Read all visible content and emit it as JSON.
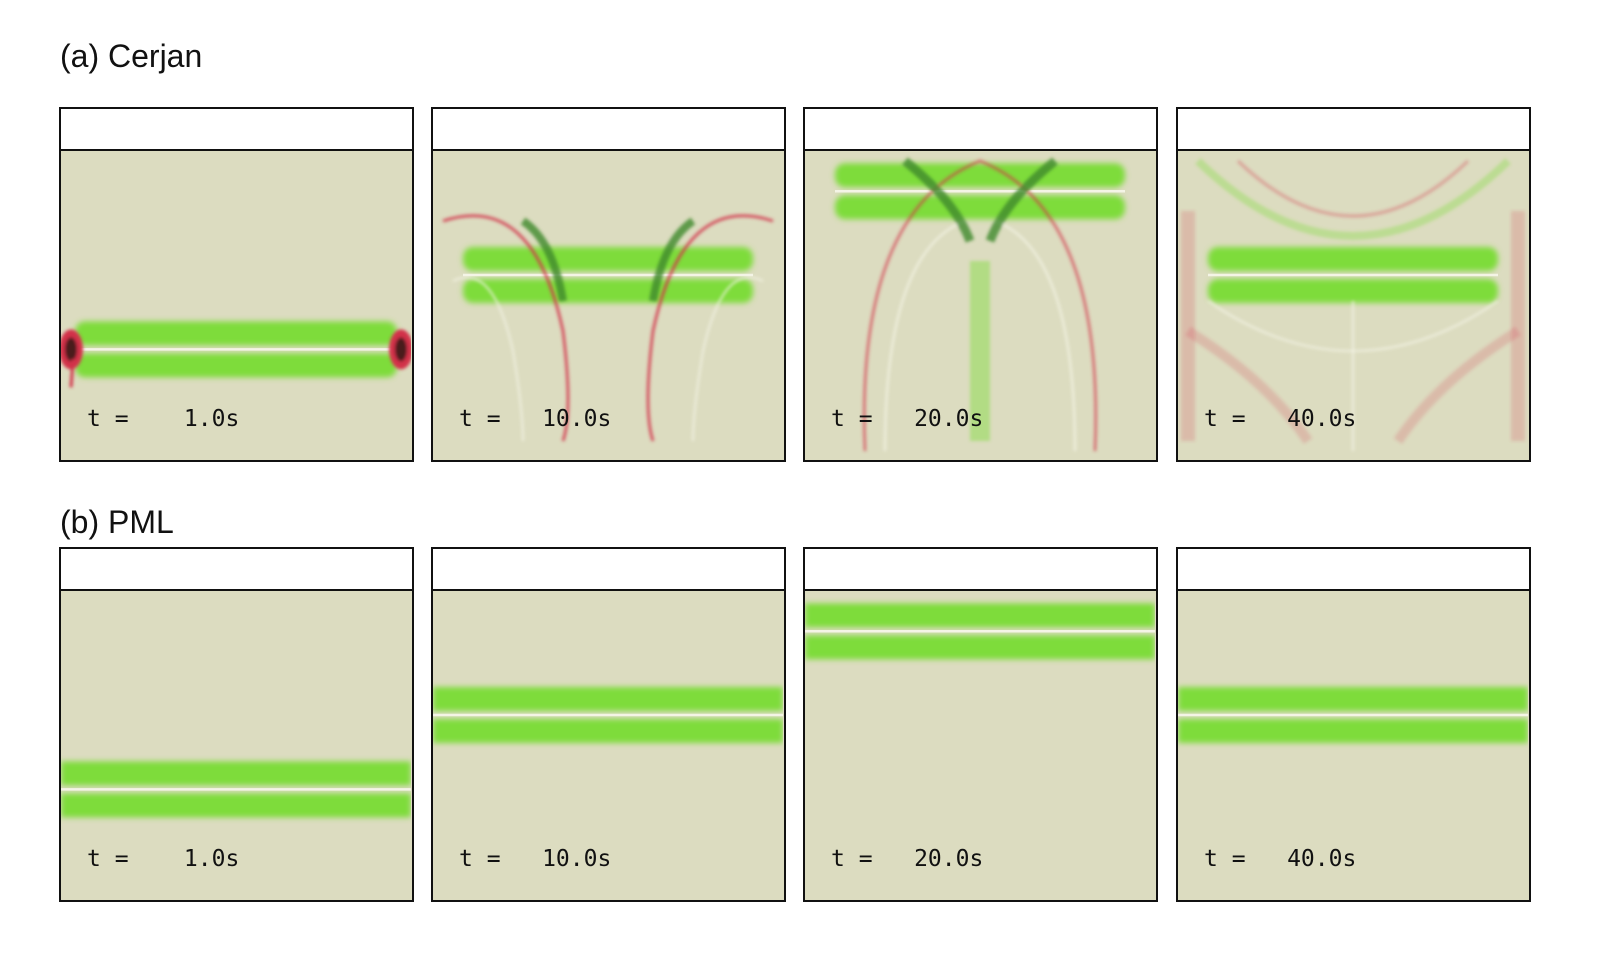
{
  "rows": [
    {
      "title": "(a) Cerjan",
      "panels": [
        {
          "time_label": "t =    1.0s",
          "band_center": 0.64,
          "artifacts": "edge"
        },
        {
          "time_label": "t =   10.0s",
          "band_center": 0.4,
          "artifacts": "arcs"
        },
        {
          "time_label": "t =   20.0s",
          "band_center": 0.13,
          "artifacts": "big-arcs"
        },
        {
          "time_label": "t =   40.0s",
          "band_center": 0.4,
          "artifacts": "chaotic"
        }
      ]
    },
    {
      "title": "(b) PML",
      "panels": [
        {
          "time_label": "t =    1.0s",
          "band_center": 0.64,
          "artifacts": "none"
        },
        {
          "time_label": "t =   10.0s",
          "band_center": 0.4,
          "artifacts": "none"
        },
        {
          "time_label": "t =   20.0s",
          "band_center": 0.13,
          "artifacts": "none"
        },
        {
          "time_label": "t =   40.0s",
          "band_center": 0.4,
          "artifacts": "none"
        }
      ]
    }
  ],
  "colors": {
    "background": "#dcdcc0",
    "wave_green": "#7edc3a",
    "dark_green": "#3f8a2a",
    "artifact_red": "#d2334a",
    "crest": "#f4f4e6"
  }
}
